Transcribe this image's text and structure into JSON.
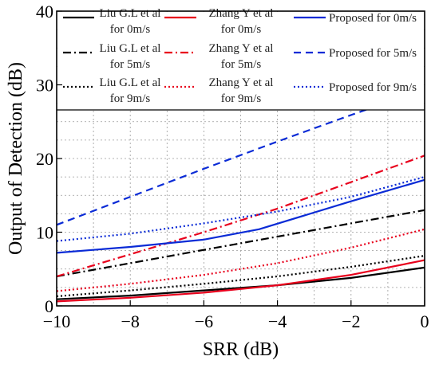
{
  "chart_data": {
    "type": "line",
    "title": "",
    "xlabel": "SRR (dB)",
    "ylabel": "Output of Detection (dB)",
    "xlim": [
      -10,
      0
    ],
    "ylim": [
      0,
      40
    ],
    "xticks": [
      -10,
      -8,
      -6,
      -4,
      -2,
      0
    ],
    "xtick_labels": [
      "−10",
      "−8",
      "−6",
      "−4",
      "−2",
      "0"
    ],
    "yticks": [
      0,
      10,
      20,
      30,
      40
    ],
    "ytick_labels": [
      "0",
      "10",
      "20",
      "30",
      "40"
    ],
    "grid": true,
    "grid_style": "dotted",
    "legend_position": "top",
    "legend_columns": 3,
    "series": [
      {
        "legend": [
          "Liu G.L et al",
          "for 0m/s"
        ],
        "color": "#000000",
        "dash": "solid",
        "x": [
          -10,
          -8,
          -6,
          -4,
          -2,
          0
        ],
        "y": [
          0.9,
          1.4,
          2.1,
          2.8,
          3.8,
          5.2
        ]
      },
      {
        "legend": [
          "Liu G.L et al",
          "for 5m/s"
        ],
        "color": "#000000",
        "dash": "dashdot",
        "x": [
          -10,
          -8,
          -6,
          -4,
          -2,
          0
        ],
        "y": [
          4.0,
          5.8,
          7.6,
          9.4,
          11.2,
          13.0
        ]
      },
      {
        "legend": [
          "Liu G.L et al",
          "for 9m/s"
        ],
        "color": "#000000",
        "dash": "dotted",
        "x": [
          -10,
          -8,
          -6,
          -4,
          -2,
          0
        ],
        "y": [
          1.3,
          2.1,
          3.0,
          4.0,
          5.3,
          6.8
        ]
      },
      {
        "legend": [
          "Zhang Y et al",
          "for 0m/s"
        ],
        "color": "#e8001c",
        "dash": "solid",
        "x": [
          -10,
          -8,
          -6,
          -4,
          -2,
          0
        ],
        "y": [
          0.6,
          1.1,
          1.8,
          2.8,
          4.2,
          6.2
        ]
      },
      {
        "legend": [
          "Zhang Y et al",
          "for 5m/s"
        ],
        "color": "#e8001c",
        "dash": "dashdot",
        "x": [
          -10,
          -8,
          -6,
          -4,
          -2,
          0
        ],
        "y": [
          4.0,
          7.0,
          10.0,
          13.2,
          16.8,
          20.4
        ]
      },
      {
        "legend": [
          "Zhang Y et al",
          "for 9m/s"
        ],
        "color": "#e8001c",
        "dash": "dotted",
        "x": [
          -10,
          -8,
          -6,
          -4,
          -2,
          0
        ],
        "y": [
          2.0,
          3.0,
          4.2,
          5.8,
          7.9,
          10.4
        ]
      },
      {
        "legend": [
          "Proposed for 0m/s"
        ],
        "color": "#0a2bd6",
        "dash": "solid",
        "x": [
          -10,
          -8,
          -6,
          -4.5,
          -2,
          0
        ],
        "y": [
          7.2,
          8.0,
          9.0,
          10.4,
          14.2,
          17.1
        ]
      },
      {
        "legend": [
          "Proposed for 5m/s"
        ],
        "color": "#0a2bd6",
        "dash": "dashed",
        "x": [
          -10,
          -8,
          -6,
          -4,
          -2,
          0
        ],
        "y": [
          11.0,
          14.8,
          18.6,
          22.3,
          25.9,
          29.4
        ]
      },
      {
        "legend": [
          "Proposed for 9m/s"
        ],
        "color": "#0a2bd6",
        "dash": "dotted",
        "x": [
          -10,
          -8,
          -6,
          -4,
          -2,
          0
        ],
        "y": [
          8.8,
          9.8,
          11.2,
          12.8,
          14.8,
          17.5
        ]
      }
    ]
  }
}
